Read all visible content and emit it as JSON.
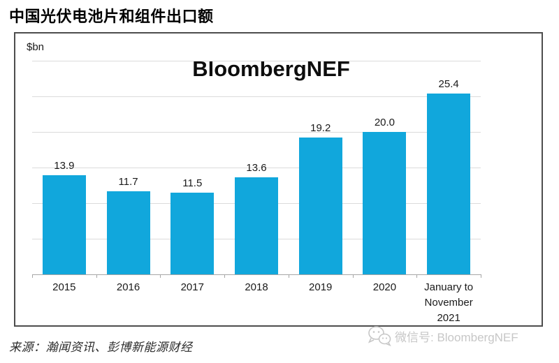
{
  "page": {
    "title": "中国光伏电池片和组件出口额"
  },
  "chart_data": {
    "type": "bar",
    "title": "中国光伏电池片和组件出口额",
    "unit": "$bn",
    "watermark": "BloombergNEF",
    "categories": [
      "2015",
      "2016",
      "2017",
      "2018",
      "2019",
      "2020",
      "January to\nNovember\n2021"
    ],
    "values": [
      13.9,
      11.7,
      11.5,
      13.6,
      19.2,
      20.0,
      25.4
    ],
    "value_labels": [
      "13.9",
      "11.7",
      "11.5",
      "13.6",
      "19.2",
      "20.0",
      "25.4"
    ],
    "ylim": [
      0,
      30
    ],
    "gridline_step": 5,
    "grid": "horizontal",
    "legend": "none",
    "bar_color": "#11a7dc"
  },
  "footer": {
    "source": "来源：瀚闻资讯、彭博新能源财经",
    "wechat_label": "微信号: BloombergNEF"
  },
  "colors": {
    "bar": "#11a7dc",
    "gridline": "#dbdbdb",
    "axis": "#a6a6a6",
    "box_border": "#4d4d4d",
    "watermark_gray": "#c7c7c7"
  },
  "icons": {
    "wechat": "wechat-icon"
  }
}
